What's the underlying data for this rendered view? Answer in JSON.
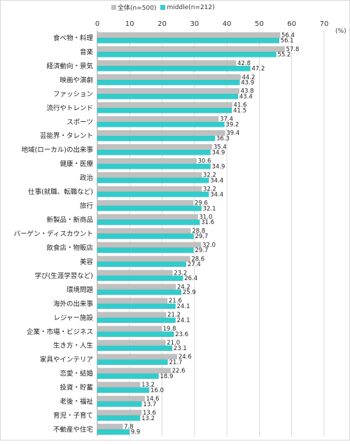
{
  "chart_data": {
    "type": "bar",
    "orientation": "horizontal",
    "unit_label": "(%)",
    "xlim": [
      0,
      70
    ],
    "ticks": [
      0,
      10,
      20,
      30,
      40,
      50,
      60,
      70
    ],
    "grid": true,
    "legend_position": "top",
    "categories": [
      "食べ物・料理",
      "音楽",
      "経済動向・景気",
      "映画や演劇",
      "ファッション",
      "流行やトレンド",
      "スポーツ",
      "芸能界・タレント",
      "地域(ローカル)の出来事",
      "健康・医療",
      "政治",
      "仕事(就職、転職など)",
      "旅行",
      "新製品・新商品",
      "バーゲン・ディスカウント",
      "飲食店・物販店",
      "美容",
      "学び(生涯学習など)",
      "環境問題",
      "海外の出来事",
      "レジャー施設",
      "企業・市場・ビジネス",
      "生き方・人生",
      "家具やインテリア",
      "恋愛・結婚",
      "投資・貯蓄",
      "老後・福祉",
      "育児・子育て",
      "不動産や住宅"
    ],
    "series": [
      {
        "name": "全体(n=500)",
        "color": "#c0c0c0",
        "values": [
          56.4,
          57.8,
          42.8,
          44.2,
          43.8,
          41.6,
          37.4,
          39.4,
          35.4,
          30.6,
          32.2,
          32.2,
          29.6,
          31.0,
          28.8,
          32.0,
          28.6,
          23.2,
          24.2,
          21.6,
          21.2,
          19.8,
          21.0,
          24.6,
          22.6,
          13.2,
          14.6,
          13.6,
          7.8
        ]
      },
      {
        "name": "middle(n=212)",
        "color": "#33cccc",
        "values": [
          56.1,
          55.2,
          47.2,
          43.9,
          43.4,
          41.5,
          39.2,
          36.3,
          34.9,
          34.9,
          34.4,
          34.4,
          32.1,
          31.6,
          29.7,
          29.7,
          27.4,
          26.4,
          25.9,
          24.1,
          24.1,
          23.6,
          23.1,
          21.7,
          18.9,
          16.0,
          13.7,
          13.2,
          9.9
        ]
      }
    ]
  }
}
